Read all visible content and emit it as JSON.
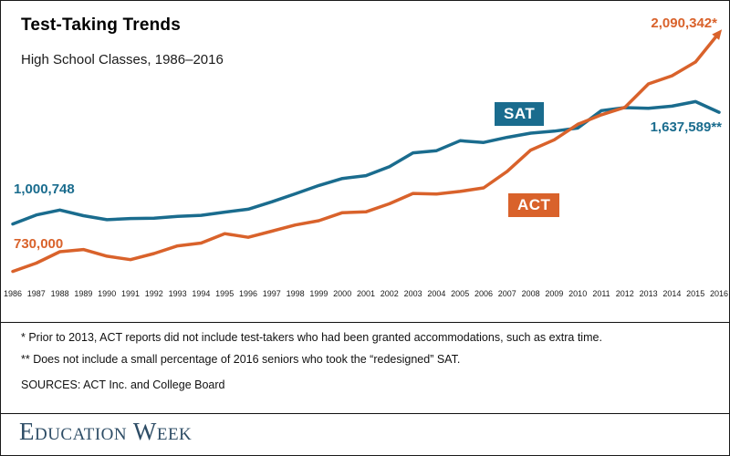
{
  "header": {
    "title": "Test-Taking Trends",
    "subtitle": "High School Classes, 1986–2016"
  },
  "chart_data": {
    "type": "line",
    "title": "Test-Taking Trends",
    "subtitle": "High School Classes, 1986–2016",
    "x": [
      1986,
      1987,
      1988,
      1989,
      1990,
      1991,
      1992,
      1993,
      1994,
      1995,
      1996,
      1997,
      1998,
      1999,
      2000,
      2001,
      2002,
      2003,
      2004,
      2005,
      2006,
      2007,
      2008,
      2009,
      2010,
      2011,
      2012,
      2013,
      2014,
      2015,
      2016
    ],
    "series": [
      {
        "name": "SAT",
        "color": "#1a6c8e",
        "values": [
          1000748,
          1052000,
          1080000,
          1048000,
          1025000,
          1032000,
          1034000,
          1044000,
          1050000,
          1067993,
          1084725,
          1127021,
          1172779,
          1220130,
          1260278,
          1276320,
          1327831,
          1406324,
          1419007,
          1475623,
          1465744,
          1494531,
          1518859,
          1530128,
          1547990,
          1647123,
          1664479,
          1660047,
          1672395,
          1698521,
          1637589
        ]
      },
      {
        "name": "ACT",
        "color": "#d9622b",
        "values": [
          730000,
          777444,
          842322,
          855171,
          817000,
          796983,
          832217,
          875603,
          891714,
          945369,
          924663,
          959301,
          995039,
          1019053,
          1065138,
          1069772,
          1116082,
          1175059,
          1171460,
          1186251,
          1206455,
          1300599,
          1421941,
          1480469,
          1568835,
          1623112,
          1666017,
          1799243,
          1845787,
          1924436,
          2090342
        ]
      }
    ],
    "ylim": [
      650000,
      2200000
    ],
    "legend_position": "inline-badges",
    "grid": false,
    "annotations": {
      "act_end": "2,090,342*",
      "sat_end": "1,637,589**",
      "sat_start": "1,000,748",
      "act_start": "730,000"
    }
  },
  "footnotes": {
    "note1": "* Prior to 2013, ACT reports did not include test-takers who had been granted accommodations, such as extra time.",
    "note2": "** Does not include a small percentage of 2016 seniors who took the “redesigned” SAT.",
    "sources": "SOURCES: ACT Inc. and College Board"
  },
  "footer": {
    "logo": "Education Week"
  }
}
